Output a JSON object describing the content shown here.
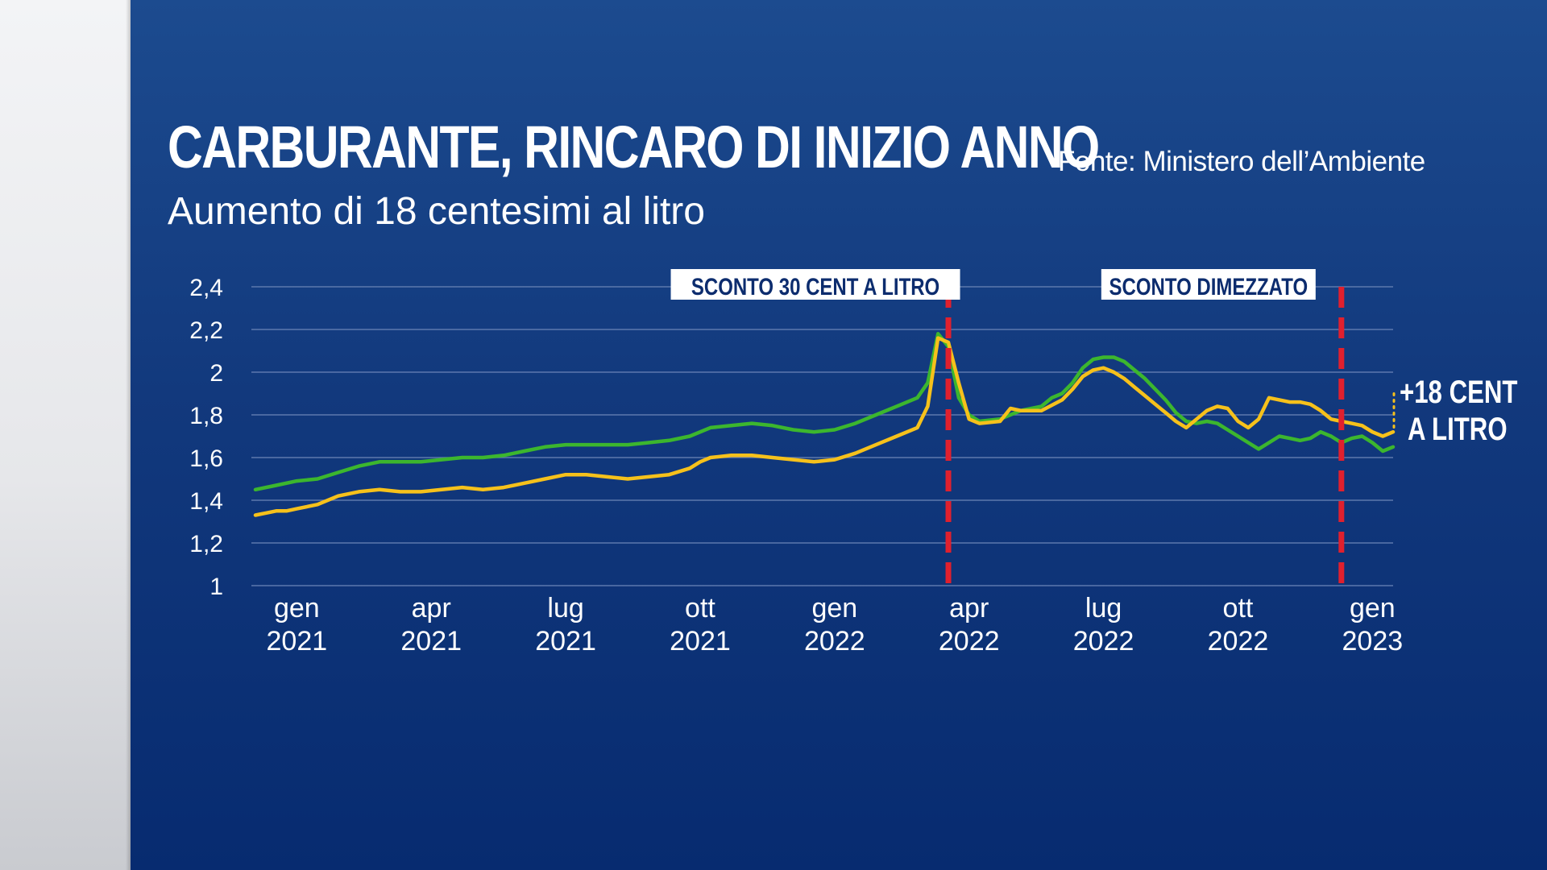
{
  "title": "CARBURANTE, RINCARO DI INIZIO ANNO",
  "subtitle": "Aumento di 18 centesimi al litro",
  "source": "Fonte: Ministero dell’Ambiente",
  "colors": {
    "background": "#0c2c6e",
    "gasolio_line": "#3cb62e",
    "benzina_line": "#f6c11b",
    "event_line": "#e0202e",
    "gridline": "#5d78ad"
  },
  "chart_data": {
    "type": "line",
    "ylim": [
      1,
      2.4
    ],
    "y_ticks": [
      1,
      1.2,
      1.4,
      1.6,
      1.8,
      2,
      2.2,
      2.4
    ],
    "y_tick_labels": [
      "1",
      "1,2",
      "1,4",
      "1,6",
      "1,8",
      "2",
      "2,2",
      "2,4"
    ],
    "x_range_weeks": [
      0,
      110
    ],
    "x_ticks": [
      {
        "week": 4,
        "month": "gen",
        "year": "2021"
      },
      {
        "week": 17,
        "month": "apr",
        "year": "2021"
      },
      {
        "week": 30,
        "month": "lug",
        "year": "2021"
      },
      {
        "week": 43,
        "month": "ott",
        "year": "2021"
      },
      {
        "week": 56,
        "month": "gen",
        "year": "2022"
      },
      {
        "week": 69,
        "month": "apr",
        "year": "2022"
      },
      {
        "week": 82,
        "month": "lug",
        "year": "2022"
      },
      {
        "week": 95,
        "month": "ott",
        "year": "2022"
      },
      {
        "week": 108,
        "month": "gen",
        "year": "2023"
      }
    ],
    "events": [
      {
        "week": 67,
        "label": "SCONTO 30 CENT A LITRO"
      },
      {
        "week": 105,
        "label": "SCONTO DIMEZZATO"
      }
    ],
    "annotation": {
      "week": 110,
      "line1": "+18 CENT",
      "line2": "A LITRO",
      "from": 1.72,
      "to": 1.9
    },
    "series": [
      {
        "name": "green",
        "points": [
          [
            0,
            1.45
          ],
          [
            2,
            1.47
          ],
          [
            4,
            1.49
          ],
          [
            6,
            1.5
          ],
          [
            8,
            1.53
          ],
          [
            10,
            1.56
          ],
          [
            12,
            1.58
          ],
          [
            14,
            1.58
          ],
          [
            16,
            1.58
          ],
          [
            18,
            1.59
          ],
          [
            20,
            1.6
          ],
          [
            22,
            1.6
          ],
          [
            24,
            1.61
          ],
          [
            26,
            1.63
          ],
          [
            28,
            1.65
          ],
          [
            30,
            1.66
          ],
          [
            32,
            1.66
          ],
          [
            34,
            1.66
          ],
          [
            36,
            1.66
          ],
          [
            38,
            1.67
          ],
          [
            40,
            1.68
          ],
          [
            42,
            1.7
          ],
          [
            44,
            1.74
          ],
          [
            46,
            1.75
          ],
          [
            48,
            1.76
          ],
          [
            50,
            1.75
          ],
          [
            52,
            1.73
          ],
          [
            54,
            1.72
          ],
          [
            56,
            1.73
          ],
          [
            58,
            1.76
          ],
          [
            60,
            1.8
          ],
          [
            62,
            1.84
          ],
          [
            64,
            1.88
          ],
          [
            65,
            1.95
          ],
          [
            66,
            2.18
          ],
          [
            67,
            2.12
          ],
          [
            68,
            1.88
          ],
          [
            69,
            1.8
          ],
          [
            70,
            1.77
          ],
          [
            72,
            1.78
          ],
          [
            74,
            1.82
          ],
          [
            76,
            1.84
          ],
          [
            77,
            1.88
          ],
          [
            78,
            1.9
          ],
          [
            79,
            1.95
          ],
          [
            80,
            2.02
          ],
          [
            81,
            2.06
          ],
          [
            82,
            2.07
          ],
          [
            83,
            2.07
          ],
          [
            84,
            2.05
          ],
          [
            85,
            2.01
          ],
          [
            86,
            1.97
          ],
          [
            87,
            1.92
          ],
          [
            88,
            1.87
          ],
          [
            89,
            1.81
          ],
          [
            90,
            1.77
          ],
          [
            91,
            1.76
          ],
          [
            92,
            1.77
          ],
          [
            93,
            1.76
          ],
          [
            94,
            1.73
          ],
          [
            95,
            1.7
          ],
          [
            96,
            1.67
          ],
          [
            97,
            1.64
          ],
          [
            98,
            1.67
          ],
          [
            99,
            1.7
          ],
          [
            100,
            1.69
          ],
          [
            101,
            1.68
          ],
          [
            102,
            1.69
          ],
          [
            103,
            1.72
          ],
          [
            104,
            1.7
          ],
          [
            105,
            1.67
          ],
          [
            106,
            1.69
          ],
          [
            107,
            1.7
          ],
          [
            108,
            1.67
          ],
          [
            109,
            1.63
          ],
          [
            110,
            1.65
          ]
        ]
      },
      {
        "name": "yellow",
        "points": [
          [
            0,
            1.33
          ],
          [
            1,
            1.34
          ],
          [
            2,
            1.35
          ],
          [
            3,
            1.35
          ],
          [
            4,
            1.36
          ],
          [
            6,
            1.38
          ],
          [
            8,
            1.42
          ],
          [
            10,
            1.44
          ],
          [
            12,
            1.45
          ],
          [
            14,
            1.44
          ],
          [
            16,
            1.44
          ],
          [
            18,
            1.45
          ],
          [
            20,
            1.46
          ],
          [
            22,
            1.45
          ],
          [
            24,
            1.46
          ],
          [
            26,
            1.48
          ],
          [
            28,
            1.5
          ],
          [
            30,
            1.52
          ],
          [
            32,
            1.52
          ],
          [
            34,
            1.51
          ],
          [
            36,
            1.5
          ],
          [
            38,
            1.51
          ],
          [
            40,
            1.52
          ],
          [
            42,
            1.55
          ],
          [
            43,
            1.58
          ],
          [
            44,
            1.6
          ],
          [
            46,
            1.61
          ],
          [
            48,
            1.61
          ],
          [
            50,
            1.6
          ],
          [
            52,
            1.59
          ],
          [
            54,
            1.58
          ],
          [
            56,
            1.59
          ],
          [
            58,
            1.62
          ],
          [
            60,
            1.66
          ],
          [
            62,
            1.7
          ],
          [
            64,
            1.74
          ],
          [
            65,
            1.84
          ],
          [
            66,
            2.16
          ],
          [
            67,
            2.14
          ],
          [
            68,
            1.95
          ],
          [
            69,
            1.78
          ],
          [
            70,
            1.76
          ],
          [
            72,
            1.77
          ],
          [
            73,
            1.83
          ],
          [
            74,
            1.82
          ],
          [
            76,
            1.82
          ],
          [
            78,
            1.87
          ],
          [
            79,
            1.92
          ],
          [
            80,
            1.98
          ],
          [
            81,
            2.01
          ],
          [
            82,
            2.02
          ],
          [
            83,
            2.0
          ],
          [
            84,
            1.97
          ],
          [
            85,
            1.93
          ],
          [
            86,
            1.89
          ],
          [
            87,
            1.85
          ],
          [
            88,
            1.81
          ],
          [
            89,
            1.77
          ],
          [
            90,
            1.74
          ],
          [
            91,
            1.78
          ],
          [
            92,
            1.82
          ],
          [
            93,
            1.84
          ],
          [
            94,
            1.83
          ],
          [
            95,
            1.77
          ],
          [
            96,
            1.74
          ],
          [
            97,
            1.78
          ],
          [
            98,
            1.88
          ],
          [
            99,
            1.87
          ],
          [
            100,
            1.86
          ],
          [
            101,
            1.86
          ],
          [
            102,
            1.85
          ],
          [
            103,
            1.82
          ],
          [
            104,
            1.78
          ],
          [
            105,
            1.77
          ],
          [
            106,
            1.76
          ],
          [
            107,
            1.75
          ],
          [
            108,
            1.72
          ],
          [
            109,
            1.7
          ],
          [
            110,
            1.72
          ]
        ]
      }
    ]
  }
}
